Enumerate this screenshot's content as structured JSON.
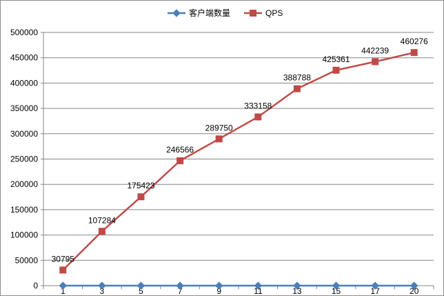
{
  "chart_data": {
    "type": "line",
    "categories": [
      "1",
      "3",
      "5",
      "7",
      "9",
      "11",
      "13",
      "15",
      "17",
      "20"
    ],
    "series": [
      {
        "name": "客户端数量",
        "color": "#4a7ebb",
        "marker": "diamond",
        "values": [
          1,
          3,
          5,
          7,
          9,
          11,
          13,
          15,
          17,
          20
        ]
      },
      {
        "name": "QPS",
        "color": "#be4b48",
        "marker": "square",
        "values": [
          30795,
          107284,
          175423,
          246566,
          289750,
          333158,
          388788,
          425361,
          442239,
          460276
        ],
        "data_labels": [
          "30795",
          "107284",
          "175423",
          "246566",
          "289750",
          "333158",
          "388788",
          "425361",
          "442239",
          "460276"
        ]
      }
    ],
    "y_ticks": [
      "0",
      "50000",
      "100000",
      "150000",
      "200000",
      "250000",
      "300000",
      "350000",
      "400000",
      "450000",
      "500000"
    ],
    "ylim": [
      0,
      500000
    ],
    "grid": true,
    "legend": "top"
  }
}
